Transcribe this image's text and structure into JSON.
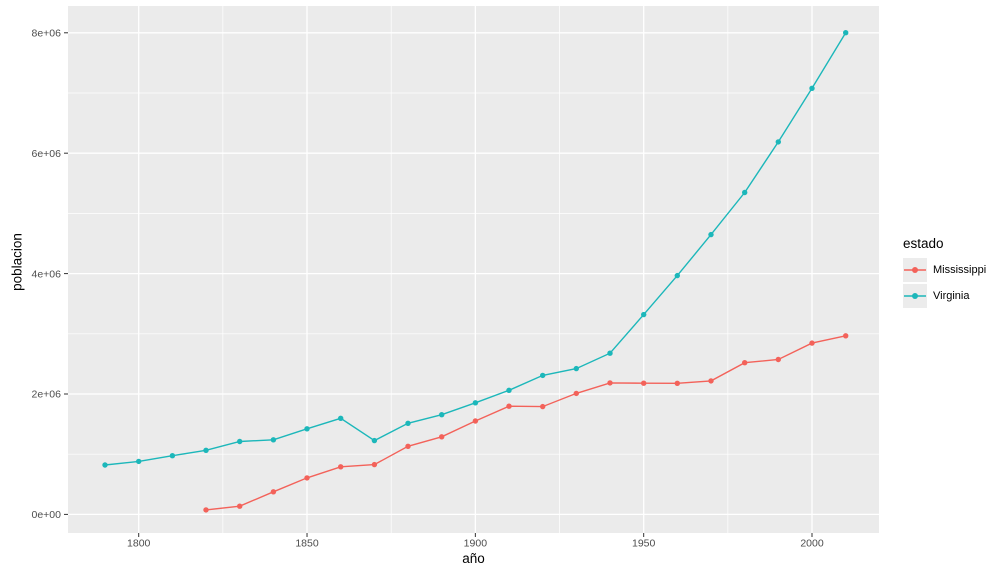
{
  "chart_data": {
    "type": "line",
    "title": "",
    "xlabel": "año",
    "ylabel": "poblacion",
    "legend_title": "estado",
    "legend_position": "right",
    "panel_bg": "#EBEBEB",
    "grid_color": "#FFFFFF",
    "legend_key_bg": "#ECECEC",
    "tick_color": "#333333",
    "tick_text_color": "#4D4D4D",
    "xlim": [
      1779,
      2019.9
    ],
    "ylim": [
      -309000,
      8445000
    ],
    "x_ticks": {
      "values": [
        1800,
        1850,
        1900,
        1950,
        2000
      ],
      "labels": [
        "1800",
        "1850",
        "1900",
        "1950",
        "2000"
      ]
    },
    "x_minor": [
      1825,
      1875,
      1925,
      1975
    ],
    "y_ticks": {
      "values": [
        0,
        2000000,
        4000000,
        6000000,
        8000000
      ],
      "labels": [
        "0e+00",
        "2e+06",
        "4e+06",
        "6e+06",
        "8e+06"
      ]
    },
    "y_minor": [
      1000000,
      3000000,
      5000000,
      7000000
    ],
    "series": [
      {
        "name": "Mississippi",
        "color": "#F3625A",
        "x": [
          1820,
          1830,
          1840,
          1850,
          1860,
          1870,
          1880,
          1890,
          1900,
          1910,
          1920,
          1930,
          1940,
          1950,
          1960,
          1970,
          1980,
          1990,
          2000,
          2010
        ],
        "y": [
          75448,
          136621,
          375651,
          606526,
          791305,
          827922,
          1131597,
          1289600,
          1551270,
          1797114,
          1790618,
          2009821,
          2183796,
          2178914,
          2178141,
          2216912,
          2520638,
          2573216,
          2844658,
          2967297
        ]
      },
      {
        "name": "Virginia",
        "color": "#1CB7BA",
        "x": [
          1790,
          1800,
          1810,
          1820,
          1830,
          1840,
          1850,
          1860,
          1870,
          1880,
          1890,
          1900,
          1910,
          1920,
          1930,
          1940,
          1950,
          1960,
          1970,
          1980,
          1990,
          2000,
          2010
        ],
        "y": [
          821287,
          880200,
          974600,
          1065366,
          1211405,
          1239797,
          1421661,
          1596318,
          1225163,
          1512565,
          1655980,
          1854184,
          2061612,
          2309187,
          2421851,
          2677773,
          3318680,
          3966949,
          4648494,
          5346818,
          6187358,
          7078515,
          8001024
        ]
      }
    ]
  }
}
